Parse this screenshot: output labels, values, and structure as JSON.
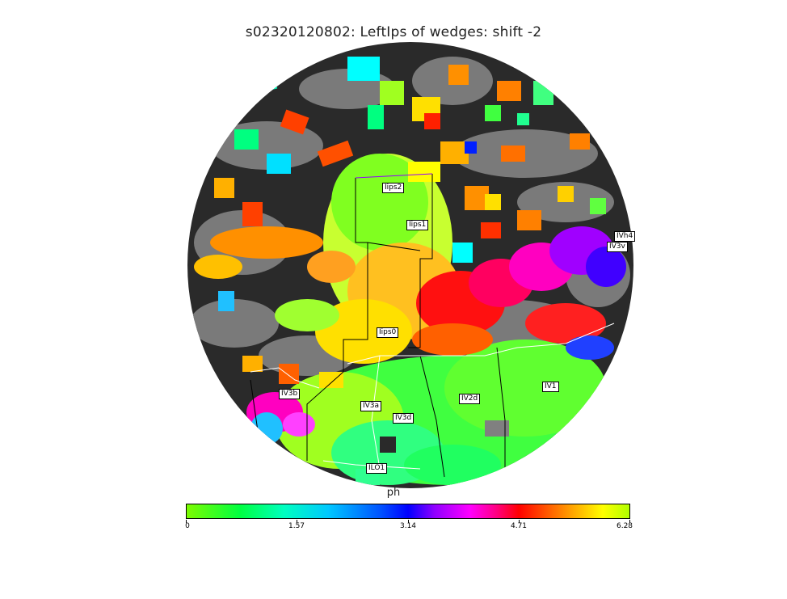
{
  "figure": {
    "title": "s02320120802: LeftIps of wedges: shift -2"
  },
  "map": {
    "background_colors": {
      "sulcus": "#2a2a2a",
      "gyrus": "#7a7a7a"
    },
    "roi_labels": {
      "ips2": "Iips2",
      "ips1": "Iips1",
      "ips0": "Iips0",
      "v3b": "IV3b",
      "v3a": "IV3a",
      "v3d": "IV3d",
      "v2d": "IV2d",
      "v1": "IV1",
      "lo1": "ILO1",
      "vh4": "IVh4",
      "v3v": "IV3v"
    }
  },
  "colorbar": {
    "label": "ph",
    "ticks": [
      "0",
      "1.57",
      "3.14",
      "4.71",
      "6.28"
    ],
    "colormap": "hsv-like phase (green-cyan-blue-magenta-red-yellow)"
  }
}
